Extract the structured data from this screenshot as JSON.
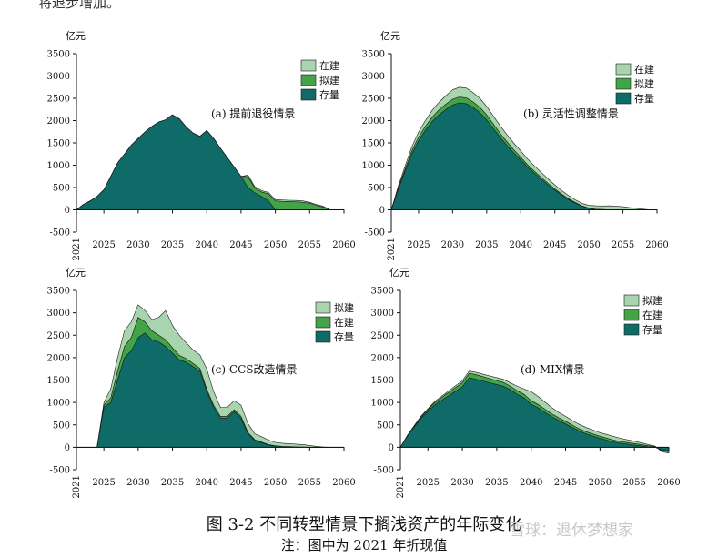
{
  "top_fragment": "将退步增加。",
  "figure": {
    "caption": "图 3-2  不同转型情景下搁浅资产的年际变化",
    "note": "注：图中为 2021 年折现值",
    "watermark": "雪球：退休梦想家"
  },
  "colors": {
    "existing": "#0e6b68",
    "planned": "#43a447",
    "under_construction": "#a8d5ad"
  },
  "chart_data": [
    {
      "type": "area",
      "stacked": true,
      "title": "(a) 提前退役情景",
      "ylabel": "亿元",
      "ylim": [
        -500,
        3500
      ],
      "yticks": [
        -500,
        0,
        500,
        1000,
        1500,
        2000,
        2500,
        3000,
        3500
      ],
      "xlim": [
        2021,
        2060
      ],
      "xtick_labels": [
        "2021",
        "2025",
        "2030",
        "2035",
        "2040",
        "2045",
        "2050",
        "2055",
        "2060"
      ],
      "legend_order": [
        "在建",
        "拟建",
        "存量"
      ],
      "legend_position": "top-right",
      "x": [
        2021,
        2022,
        2023,
        2024,
        2025,
        2026,
        2027,
        2028,
        2029,
        2030,
        2031,
        2032,
        2033,
        2034,
        2035,
        2036,
        2037,
        2038,
        2039,
        2040,
        2041,
        2042,
        2043,
        2044,
        2045,
        2046,
        2047,
        2048,
        2049,
        2050,
        2051,
        2052,
        2053,
        2054,
        2055,
        2056,
        2057,
        2058,
        2059,
        2060
      ],
      "series": [
        {
          "name": "存量",
          "color_key": "existing",
          "values": [
            0,
            120,
            200,
            300,
            450,
            750,
            1050,
            1250,
            1450,
            1600,
            1750,
            1870,
            1970,
            2020,
            2130,
            2040,
            1860,
            1720,
            1650,
            1780,
            1600,
            1380,
            1170,
            960,
            750,
            500,
            380,
            300,
            200,
            0,
            0,
            0,
            0,
            0,
            0,
            0,
            0,
            0,
            0,
            0
          ]
        },
        {
          "name": "拟建",
          "color_key": "planned",
          "values": [
            0,
            0,
            0,
            0,
            0,
            0,
            0,
            0,
            0,
            0,
            0,
            0,
            0,
            0,
            0,
            0,
            0,
            0,
            0,
            0,
            0,
            0,
            0,
            0,
            0,
            250,
            110,
            100,
            160,
            200,
            190,
            185,
            180,
            170,
            150,
            100,
            60,
            0,
            0,
            0
          ]
        },
        {
          "name": "在建",
          "color_key": "under_construction",
          "values": [
            0,
            0,
            0,
            0,
            0,
            0,
            0,
            0,
            0,
            0,
            0,
            0,
            0,
            0,
            0,
            0,
            0,
            0,
            0,
            0,
            0,
            0,
            0,
            0,
            0,
            30,
            30,
            30,
            30,
            30,
            30,
            30,
            30,
            30,
            20,
            20,
            20,
            0,
            0,
            0
          ]
        }
      ]
    },
    {
      "type": "area",
      "stacked": true,
      "title": "(b) 灵活性调整情景",
      "ylabel": "亿元",
      "ylim": [
        -500,
        3500
      ],
      "yticks": [
        -500,
        0,
        500,
        1000,
        1500,
        2000,
        2500,
        3000,
        3500
      ],
      "xlim": [
        2021,
        2060
      ],
      "xtick_labels": [
        "2021",
        "2025",
        "2030",
        "2035",
        "2040",
        "2045",
        "2050",
        "2055",
        "2060"
      ],
      "legend_order": [
        "在建",
        "拟建",
        "存量"
      ],
      "legend_position": "top-right",
      "x": [
        2021,
        2022,
        2023,
        2024,
        2025,
        2026,
        2027,
        2028,
        2029,
        2030,
        2031,
        2032,
        2033,
        2034,
        2035,
        2036,
        2037,
        2038,
        2039,
        2040,
        2041,
        2042,
        2043,
        2044,
        2045,
        2046,
        2047,
        2048,
        2049,
        2050,
        2051,
        2052,
        2053,
        2054,
        2055,
        2056,
        2057,
        2058,
        2059,
        2060
      ],
      "series": [
        {
          "name": "存量",
          "color_key": "existing",
          "values": [
            0,
            450,
            850,
            1250,
            1550,
            1780,
            1980,
            2130,
            2250,
            2350,
            2400,
            2380,
            2300,
            2180,
            2020,
            1820,
            1620,
            1440,
            1270,
            1120,
            960,
            820,
            690,
            560,
            440,
            330,
            230,
            150,
            80,
            30,
            10,
            5,
            0,
            0,
            0,
            0,
            0,
            0,
            0,
            0
          ]
        },
        {
          "name": "拟建",
          "color_key": "planned",
          "values": [
            0,
            30,
            50,
            70,
            80,
            90,
            100,
            110,
            120,
            130,
            130,
            130,
            120,
            120,
            110,
            100,
            90,
            80,
            70,
            60,
            50,
            45,
            40,
            35,
            30,
            25,
            20,
            15,
            10,
            10,
            5,
            5,
            0,
            0,
            0,
            0,
            0,
            0,
            0,
            0
          ]
        },
        {
          "name": "在建",
          "color_key": "under_construction",
          "values": [
            0,
            40,
            70,
            90,
            110,
            130,
            150,
            170,
            190,
            210,
            220,
            220,
            210,
            200,
            190,
            180,
            170,
            160,
            150,
            140,
            130,
            120,
            110,
            100,
            90,
            80,
            70,
            60,
            55,
            60,
            75,
            75,
            90,
            80,
            70,
            50,
            30,
            15,
            0,
            0
          ]
        }
      ]
    },
    {
      "type": "area",
      "stacked": true,
      "title": "(c) CCS改造情景",
      "ylabel": "亿元",
      "ylim": [
        -500,
        3500
      ],
      "yticks": [
        -500,
        0,
        500,
        1000,
        1500,
        2000,
        2500,
        3000,
        3500
      ],
      "xlim": [
        2021,
        2060
      ],
      "xtick_labels": [
        "2021",
        "2025",
        "2030",
        "2035",
        "2040",
        "2045",
        "2050",
        "2055",
        "2060"
      ],
      "legend_order": [
        "拟建",
        "在建",
        "存量"
      ],
      "legend_position": "top-right",
      "x": [
        2021,
        2022,
        2023,
        2024,
        2025,
        2026,
        2027,
        2028,
        2029,
        2030,
        2031,
        2032,
        2033,
        2034,
        2035,
        2036,
        2037,
        2038,
        2039,
        2040,
        2041,
        2042,
        2043,
        2044,
        2045,
        2046,
        2047,
        2048,
        2049,
        2050,
        2051,
        2052,
        2053,
        2054,
        2055,
        2056,
        2057,
        2058,
        2059,
        2060
      ],
      "series": [
        {
          "name": "存量",
          "color_key": "existing",
          "values": [
            0,
            0,
            0,
            0,
            900,
            1000,
            1500,
            2000,
            2150,
            2450,
            2550,
            2400,
            2350,
            2250,
            2100,
            1950,
            1900,
            1800,
            1700,
            1250,
            900,
            650,
            650,
            800,
            650,
            300,
            150,
            100,
            50,
            30,
            20,
            15,
            10,
            5,
            0,
            0,
            0,
            0,
            0,
            0
          ]
        },
        {
          "name": "在建",
          "color_key": "planned",
          "values": [
            0,
            0,
            0,
            0,
            50,
            100,
            200,
            250,
            300,
            450,
            250,
            200,
            150,
            150,
            120,
            100,
            80,
            70,
            60,
            50,
            40,
            40,
            40,
            40,
            40,
            30,
            20,
            15,
            10,
            5,
            0,
            0,
            0,
            0,
            0,
            0,
            0,
            0,
            0,
            0
          ]
        },
        {
          "name": "拟建",
          "color_key": "under_construction",
          "values": [
            0,
            0,
            0,
            0,
            50,
            200,
            300,
            350,
            350,
            280,
            250,
            250,
            400,
            650,
            500,
            450,
            350,
            300,
            300,
            450,
            300,
            200,
            200,
            200,
            250,
            200,
            130,
            120,
            100,
            75,
            70,
            65,
            60,
            55,
            40,
            20,
            5,
            0,
            0,
            0
          ]
        }
      ]
    },
    {
      "type": "area",
      "stacked": true,
      "title": "(d) MIX情景",
      "ylabel": "亿元",
      "ylim": [
        -500,
        3500
      ],
      "yticks": [
        -500,
        0,
        500,
        1000,
        1500,
        2000,
        2500,
        3000,
        3500
      ],
      "xlim": [
        2021,
        2060
      ],
      "xtick_labels": [
        "2021",
        "2025",
        "2030",
        "2035",
        "2040",
        "2045",
        "2050",
        "2055",
        "2060"
      ],
      "legend_order": [
        "拟建",
        "在建",
        "存量"
      ],
      "legend_position": "top-right",
      "x": [
        2021,
        2022,
        2023,
        2024,
        2025,
        2026,
        2027,
        2028,
        2029,
        2030,
        2031,
        2032,
        2033,
        2034,
        2035,
        2036,
        2037,
        2038,
        2039,
        2040,
        2041,
        2042,
        2043,
        2044,
        2045,
        2046,
        2047,
        2048,
        2049,
        2050,
        2051,
        2052,
        2053,
        2054,
        2055,
        2056,
        2057,
        2058,
        2059,
        2060
      ],
      "series": [
        {
          "name": "存量",
          "color_key": "existing",
          "values": [
            0,
            250,
            450,
            650,
            800,
            950,
            1050,
            1150,
            1250,
            1350,
            1550,
            1520,
            1480,
            1440,
            1400,
            1360,
            1280,
            1180,
            1100,
            960,
            880,
            780,
            680,
            600,
            520,
            440,
            360,
            300,
            250,
            200,
            160,
            120,
            90,
            70,
            50,
            30,
            10,
            0,
            -60,
            -80
          ]
        },
        {
          "name": "在建",
          "color_key": "planned",
          "values": [
            0,
            10,
            20,
            30,
            40,
            50,
            60,
            70,
            80,
            90,
            100,
            100,
            95,
            90,
            90,
            85,
            80,
            80,
            80,
            80,
            75,
            70,
            65,
            60,
            60,
            55,
            50,
            50,
            45,
            45,
            45,
            40,
            40,
            35,
            35,
            30,
            25,
            15,
            -20,
            -25
          ]
        },
        {
          "name": "拟建",
          "color_key": "under_construction",
          "values": [
            0,
            5,
            10,
            15,
            20,
            25,
            30,
            35,
            40,
            45,
            50,
            50,
            55,
            60,
            65,
            70,
            75,
            100,
            120,
            200,
            180,
            160,
            140,
            120,
            110,
            100,
            100,
            90,
            90,
            80,
            80,
            80,
            70,
            60,
            50,
            40,
            25,
            10,
            -20,
            -25
          ]
        }
      ]
    }
  ]
}
